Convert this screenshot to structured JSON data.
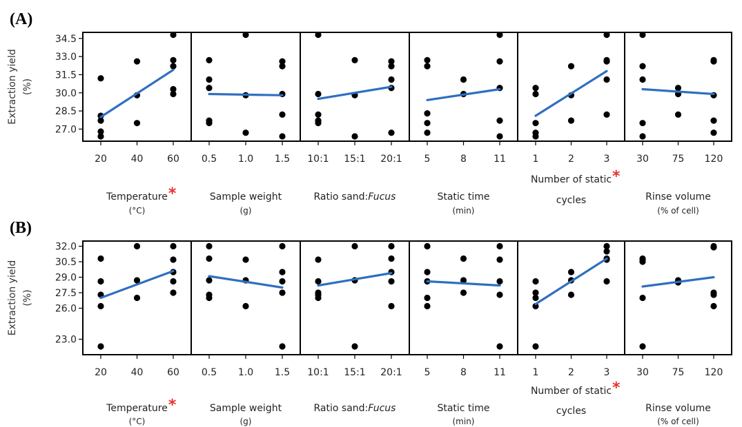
{
  "chart_data": [
    {
      "type": "scatter",
      "panel_label": "(A)",
      "ylabel_line1": "Extraction yield",
      "ylabel_line2": "(%)",
      "ylim": [
        26.0,
        35.0
      ],
      "yticks": [
        "34.5",
        "33.0",
        "31.5",
        "30.0",
        "28.5",
        "27.0"
      ],
      "ytick_values": [
        34.5,
        33.0,
        31.5,
        30.0,
        28.5,
        27.0
      ],
      "trend_color": "#2e6fc0",
      "point_color": "#000000",
      "factors": [
        {
          "name": "Temperature",
          "italic": "",
          "unit": "(°C)",
          "star": "*",
          "significant": true,
          "ticks": [
            "20",
            "40",
            "60"
          ],
          "points": [
            [
              0,
              31.2
            ],
            [
              0,
              28.1
            ],
            [
              0,
              27.7
            ],
            [
              0,
              26.8
            ],
            [
              0,
              26.4
            ],
            [
              1,
              32.6
            ],
            [
              1,
              29.8
            ],
            [
              1,
              27.5
            ],
            [
              2,
              34.8
            ],
            [
              2,
              32.7
            ],
            [
              2,
              32.2
            ],
            [
              2,
              30.3
            ],
            [
              2,
              29.9
            ]
          ],
          "trend": [
            28.0,
            31.9
          ]
        },
        {
          "name": "Sample weight",
          "italic": "",
          "unit": "(g)",
          "star": "",
          "significant": false,
          "ticks": [
            "0.5",
            "1.0",
            "1.5"
          ],
          "points": [
            [
              0,
              32.7
            ],
            [
              0,
              31.1
            ],
            [
              0,
              30.4
            ],
            [
              0,
              27.7
            ],
            [
              0,
              27.5
            ],
            [
              1,
              34.8
            ],
            [
              1,
              29.8
            ],
            [
              1,
              26.7
            ],
            [
              2,
              32.6
            ],
            [
              2,
              32.2
            ],
            [
              2,
              29.9
            ],
            [
              2,
              28.2
            ],
            [
              2,
              26.4
            ]
          ],
          "trend": [
            29.9,
            29.8
          ]
        },
        {
          "name": "Ratio sand:",
          "italic": "Fucus",
          "unit": "",
          "star": "",
          "significant": false,
          "ticks": [
            "10:1",
            "15:1",
            "20:1"
          ],
          "points": [
            [
              0,
              34.8
            ],
            [
              0,
              29.9
            ],
            [
              0,
              28.2
            ],
            [
              0,
              27.7
            ],
            [
              0,
              27.5
            ],
            [
              1,
              32.7
            ],
            [
              1,
              29.8
            ],
            [
              1,
              26.4
            ],
            [
              2,
              32.6
            ],
            [
              2,
              32.2
            ],
            [
              2,
              31.1
            ],
            [
              2,
              30.4
            ],
            [
              2,
              26.7
            ]
          ],
          "trend": [
            29.5,
            30.5
          ]
        },
        {
          "name": "Static time",
          "italic": "",
          "unit": "(min)",
          "star": "",
          "significant": false,
          "ticks": [
            "5",
            "8",
            "11"
          ],
          "points": [
            [
              0,
              32.7
            ],
            [
              0,
              32.2
            ],
            [
              0,
              28.3
            ],
            [
              0,
              27.5
            ],
            [
              0,
              26.7
            ],
            [
              1,
              31.1
            ],
            [
              1,
              29.9
            ],
            [
              2,
              34.8
            ],
            [
              2,
              32.6
            ],
            [
              2,
              30.4
            ],
            [
              2,
              27.7
            ],
            [
              2,
              26.4
            ]
          ],
          "trend": [
            29.4,
            30.3
          ]
        },
        {
          "name": "Number of static",
          "italic": "",
          "unit": "cycles",
          "star": "*",
          "significant": true,
          "ticks": [
            "1",
            "2",
            "3"
          ],
          "points": [
            [
              0,
              30.4
            ],
            [
              0,
              29.9
            ],
            [
              0,
              27.5
            ],
            [
              0,
              26.7
            ],
            [
              0,
              26.4
            ],
            [
              1,
              32.2
            ],
            [
              1,
              29.8
            ],
            [
              1,
              27.7
            ],
            [
              2,
              34.8
            ],
            [
              2,
              32.7
            ],
            [
              2,
              32.6
            ],
            [
              2,
              31.1
            ],
            [
              2,
              28.2
            ]
          ],
          "trend": [
            28.1,
            31.8
          ]
        },
        {
          "name": "Rinse volume",
          "italic": "",
          "unit": "(% of cell)",
          "star": "",
          "significant": false,
          "ticks": [
            "30",
            "75",
            "120"
          ],
          "points": [
            [
              0,
              34.8
            ],
            [
              0,
              32.2
            ],
            [
              0,
              31.1
            ],
            [
              0,
              27.5
            ],
            [
              0,
              26.4
            ],
            [
              1,
              30.4
            ],
            [
              1,
              29.9
            ],
            [
              1,
              28.2
            ],
            [
              2,
              32.7
            ],
            [
              2,
              32.6
            ],
            [
              2,
              29.8
            ],
            [
              2,
              27.7
            ],
            [
              2,
              26.7
            ]
          ],
          "trend": [
            30.3,
            29.9
          ]
        }
      ]
    },
    {
      "type": "scatter",
      "panel_label": "(B)",
      "ylabel_line1": "Extraction yield",
      "ylabel_line2": "(%)",
      "ylim": [
        21.5,
        32.5
      ],
      "yticks": [
        "32.0",
        "30.5",
        "29.0",
        "27.5",
        "26.0",
        "23.0"
      ],
      "ytick_values": [
        32.0,
        30.5,
        29.0,
        27.5,
        26.0,
        23.0
      ],
      "trend_color": "#2e6fc0",
      "point_color": "#000000",
      "factors": [
        {
          "name": "Temperature",
          "italic": "",
          "unit": "(°C)",
          "star": "*",
          "significant": true,
          "ticks": [
            "20",
            "40",
            "60"
          ],
          "points": [
            [
              0,
              30.8
            ],
            [
              0,
              28.6
            ],
            [
              0,
              27.3
            ],
            [
              0,
              26.2
            ],
            [
              0,
              22.3
            ],
            [
              1,
              32.0
            ],
            [
              1,
              28.7
            ],
            [
              1,
              27.0
            ],
            [
              2,
              32.0
            ],
            [
              2,
              30.7
            ],
            [
              2,
              29.5
            ],
            [
              2,
              28.6
            ],
            [
              2,
              27.5
            ]
          ],
          "trend": [
            27.0,
            29.6
          ]
        },
        {
          "name": "Sample weight",
          "italic": "",
          "unit": "(g)",
          "star": "",
          "significant": false,
          "ticks": [
            "0.5",
            "1.0",
            "1.5"
          ],
          "points": [
            [
              0,
              32.0
            ],
            [
              0,
              30.8
            ],
            [
              0,
              28.7
            ],
            [
              0,
              27.3
            ],
            [
              0,
              27.0
            ],
            [
              1,
              30.7
            ],
            [
              1,
              28.7
            ],
            [
              1,
              26.2
            ],
            [
              2,
              32.0
            ],
            [
              2,
              29.5
            ],
            [
              2,
              28.6
            ],
            [
              2,
              27.5
            ],
            [
              2,
              22.3
            ]
          ],
          "trend": [
            29.1,
            28.0
          ]
        },
        {
          "name": "Ratio sand:",
          "italic": "Fucus",
          "unit": "",
          "star": "",
          "significant": false,
          "ticks": [
            "10:1",
            "15:1",
            "20:1"
          ],
          "points": [
            [
              0,
              30.7
            ],
            [
              0,
              28.6
            ],
            [
              0,
              27.5
            ],
            [
              0,
              27.3
            ],
            [
              0,
              27.0
            ],
            [
              1,
              32.0
            ],
            [
              1,
              28.7
            ],
            [
              1,
              22.3
            ],
            [
              2,
              32.0
            ],
            [
              2,
              30.8
            ],
            [
              2,
              29.5
            ],
            [
              2,
              28.6
            ],
            [
              2,
              26.2
            ]
          ],
          "trend": [
            28.2,
            29.4
          ]
        },
        {
          "name": "Static time",
          "italic": "",
          "unit": "(min)",
          "star": "",
          "significant": false,
          "ticks": [
            "5",
            "8",
            "11"
          ],
          "points": [
            [
              0,
              32.0
            ],
            [
              0,
              29.5
            ],
            [
              0,
              28.6
            ],
            [
              0,
              27.0
            ],
            [
              0,
              26.2
            ],
            [
              1,
              30.8
            ],
            [
              1,
              28.7
            ],
            [
              1,
              27.5
            ],
            [
              2,
              32.0
            ],
            [
              2,
              30.7
            ],
            [
              2,
              28.6
            ],
            [
              2,
              27.3
            ],
            [
              2,
              22.3
            ]
          ],
          "trend": [
            28.6,
            28.2
          ]
        },
        {
          "name": "Number of static",
          "italic": "",
          "unit": "cycles",
          "star": "*",
          "significant": true,
          "ticks": [
            "1",
            "2",
            "3"
          ],
          "points": [
            [
              0,
              28.6
            ],
            [
              0,
              27.5
            ],
            [
              0,
              27.0
            ],
            [
              0,
              26.2
            ],
            [
              0,
              22.3
            ],
            [
              1,
              29.5
            ],
            [
              1,
              28.7
            ],
            [
              1,
              27.3
            ],
            [
              2,
              32.0
            ],
            [
              2,
              31.5
            ],
            [
              2,
              30.8
            ],
            [
              2,
              30.7
            ],
            [
              2,
              28.6
            ]
          ],
          "trend": [
            26.4,
            30.8
          ]
        },
        {
          "name": "Rinse volume",
          "italic": "",
          "unit": "(% of cell)",
          "star": "",
          "significant": false,
          "ticks": [
            "30",
            "75",
            "120"
          ],
          "points": [
            [
              0,
              30.8
            ],
            [
              0,
              30.7
            ],
            [
              0,
              30.5
            ],
            [
              0,
              27.0
            ],
            [
              0,
              22.3
            ],
            [
              1,
              28.7
            ],
            [
              1,
              28.5
            ],
            [
              2,
              32.0
            ],
            [
              2,
              31.9
            ],
            [
              2,
              27.5
            ],
            [
              2,
              27.3
            ],
            [
              2,
              26.2
            ]
          ],
          "trend": [
            28.1,
            29.0
          ]
        }
      ]
    }
  ]
}
